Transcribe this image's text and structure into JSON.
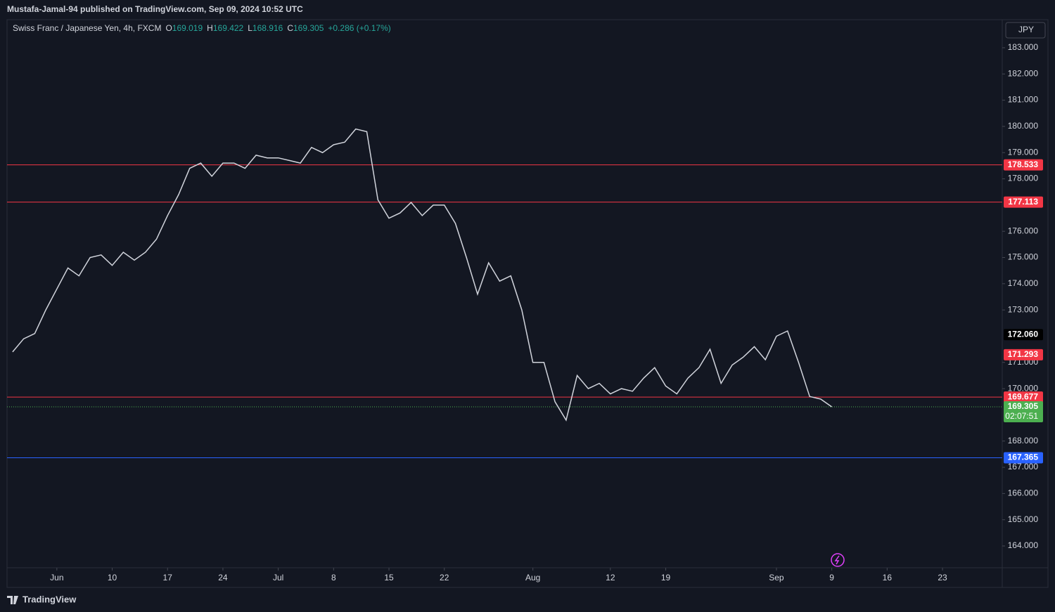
{
  "header": "Mustafa-Jamal-94 published on TradingView.com, Sep 09, 2024 10:52 UTC",
  "footer": "TradingView",
  "currency_button": "JPY",
  "chart_data": {
    "type": "line",
    "title": "Swiss Franc / Japanese Yen, 4h, FXCM",
    "ohlc": [
      {
        "label": "O",
        "value": "169.019"
      },
      {
        "label": "H",
        "value": "169.422"
      },
      {
        "label": "L",
        "value": "168.916"
      },
      {
        "label": "C",
        "value": "169.305"
      }
    ],
    "change": "+0.286 (+0.17%)",
    "categories": [
      null,
      null,
      null,
      null,
      "Jun",
      null,
      null,
      null,
      null,
      "10",
      null,
      null,
      null,
      null,
      "17",
      null,
      null,
      null,
      null,
      "24",
      null,
      null,
      null,
      null,
      "Jul",
      null,
      null,
      null,
      null,
      "8",
      null,
      null,
      null,
      null,
      "15",
      null,
      null,
      null,
      null,
      "22",
      null,
      null,
      null,
      null,
      null,
      null,
      null,
      "Aug",
      null,
      null,
      null,
      null,
      null,
      null,
      "12",
      null,
      null,
      null,
      null,
      "19",
      null,
      null,
      null,
      null,
      null,
      null,
      null,
      null,
      null,
      "Sep",
      null,
      null,
      null,
      null,
      "9",
      null,
      null,
      null,
      null,
      "16",
      null,
      null,
      null,
      null,
      "23",
      null,
      null,
      null,
      null,
      null
    ],
    "series": [
      {
        "color": "#d1d4dc",
        "values": [
          171.4,
          171.9,
          172.1,
          173.0,
          173.8,
          174.6,
          174.3,
          175.0,
          175.1,
          174.7,
          175.2,
          174.9,
          175.2,
          175.7,
          176.6,
          177.4,
          178.4,
          178.6,
          178.1,
          178.6,
          178.6,
          178.4,
          178.9,
          178.8,
          178.8,
          178.7,
          178.6,
          179.2,
          179.0,
          179.3,
          179.4,
          179.9,
          179.8,
          177.2,
          176.5,
          176.7,
          177.1,
          176.6,
          177.0,
          177.0,
          176.3,
          175.0,
          173.6,
          174.8,
          174.1,
          174.3,
          173.0,
          171.0,
          171.0,
          169.5,
          168.8,
          170.5,
          170.0,
          170.2,
          169.8,
          170.0,
          169.9,
          170.4,
          170.8,
          170.1,
          169.8,
          170.4,
          170.8,
          171.5,
          170.2,
          170.9,
          171.2,
          171.6,
          171.1,
          172.0,
          172.2,
          171.0,
          169.7,
          169.6,
          169.305,
          null,
          null,
          null,
          null,
          null,
          null,
          null,
          null,
          null,
          null,
          null,
          null,
          null,
          null,
          null
        ]
      }
    ],
    "ylim": [
      163.17,
      184.07
    ],
    "yticks": [
      {
        "value": 183,
        "label": "183.000"
      },
      {
        "value": 182,
        "label": "182.000"
      },
      {
        "value": 181,
        "label": "181.000"
      },
      {
        "value": 180,
        "label": "180.000"
      },
      {
        "value": 179,
        "label": "179.000"
      },
      {
        "value": 178,
        "label": "178.000"
      },
      {
        "value": 176,
        "label": "176.000"
      },
      {
        "value": 175,
        "label": "175.000"
      },
      {
        "value": 174,
        "label": "174.000"
      },
      {
        "value": 173,
        "label": "173.000"
      },
      {
        "value": 171,
        "label": "171.000"
      },
      {
        "value": 170,
        "label": "170.000"
      },
      {
        "value": 168,
        "label": "168.000"
      },
      {
        "value": 167,
        "label": "167.000"
      },
      {
        "value": 166,
        "label": "166.000"
      },
      {
        "value": 165,
        "label": "165.000"
      },
      {
        "value": 164,
        "label": "164.000"
      }
    ],
    "price_levels": [
      {
        "value": 178.533,
        "label": "178.533",
        "color": "#f23645",
        "line": "solid"
      },
      {
        "value": 177.113,
        "label": "177.113",
        "color": "#f23645",
        "line": "solid"
      },
      {
        "value": 172.06,
        "label": "172.060",
        "color": "#000000",
        "line": "none"
      },
      {
        "value": 171.293,
        "label": "171.293",
        "color": "#f23645",
        "line": "none"
      },
      {
        "value": 169.677,
        "label": "169.677",
        "color": "#f23645",
        "line": "solid"
      },
      {
        "value": 169.305,
        "label": "169.305",
        "color": "#4caf50",
        "line": "dotted",
        "countdown": "02:07:51"
      },
      {
        "value": 167.365,
        "label": "167.365",
        "color": "#2962ff",
        "line": "solid"
      }
    ]
  }
}
